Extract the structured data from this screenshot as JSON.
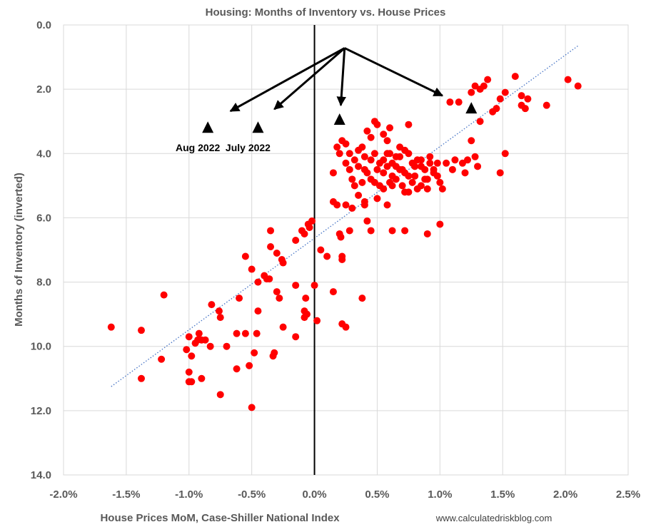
{
  "chart_data": {
    "type": "scatter",
    "title": "Housing: Months of Inventory vs. House Prices",
    "xlabel": "House Prices MoM, Case-Shiller National Index",
    "ylabel": "Months of Inventory (inverted)",
    "credit": "www.calculatedriskblog.com",
    "xlim": [
      -0.02,
      0.025
    ],
    "ylim": [
      0,
      14
    ],
    "y_inverted": true,
    "grid": true,
    "x_ticks": [
      -0.02,
      -0.015,
      -0.01,
      -0.005,
      0,
      0.005,
      0.01,
      0.015,
      0.02,
      0.025
    ],
    "x_tick_labels": [
      "-2.0%",
      "-1.5%",
      "-1.0%",
      "-0.5%",
      "0.0%",
      "0.5%",
      "1.0%",
      "1.5%",
      "2.0%",
      "2.5%"
    ],
    "y_ticks": [
      0,
      2,
      4,
      6,
      8,
      10,
      12,
      14
    ],
    "y_tick_labels": [
      "0.0",
      "2.0",
      "4.0",
      "6.0",
      "8.0",
      "10.0",
      "12.0",
      "14.0"
    ],
    "colors": {
      "points": "#ff0000",
      "trendline": "#4472c4",
      "grid": "#d9d9d9",
      "zero_line": "#000000",
      "markers": "#000000",
      "text": "#595959"
    },
    "trendline": {
      "style": "dotted",
      "x": [
        -0.0162,
        0.021
      ],
      "y": [
        11.25,
        0.65
      ]
    },
    "annotations": [
      {
        "text": "Aug 2022",
        "x": -0.0085,
        "y": 3.2
      },
      {
        "text": "July 2022",
        "x": -0.0045,
        "y": 3.2
      }
    ],
    "highlight_markers": [
      {
        "x": -0.0085,
        "y": 3.2
      },
      {
        "x": -0.0045,
        "y": 3.2
      },
      {
        "x": 0.002,
        "y": 2.95
      },
      {
        "x": 0.0125,
        "y": 2.6
      }
    ],
    "arrows": {
      "origin": {
        "x": 0.0024,
        "y": 0.72
      },
      "targets": [
        {
          "x": -0.0067,
          "y": 2.68
        },
        {
          "x": -0.0032,
          "y": 2.62
        },
        {
          "x": 0.0021,
          "y": 2.5
        },
        {
          "x": 0.0102,
          "y": 2.2
        }
      ]
    },
    "points": [
      [
        -0.0162,
        9.4
      ],
      [
        -0.0138,
        9.5
      ],
      [
        -0.0138,
        11.0
      ],
      [
        -0.012,
        8.4
      ],
      [
        -0.0122,
        10.4
      ],
      [
        -0.0102,
        10.1
      ],
      [
        -0.01,
        9.7
      ],
      [
        -0.0098,
        10.3
      ],
      [
        -0.01,
        10.8
      ],
      [
        -0.01,
        11.1
      ],
      [
        -0.0098,
        11.1
      ],
      [
        -0.0095,
        9.9
      ],
      [
        -0.0093,
        9.8
      ],
      [
        -0.0092,
        9.6
      ],
      [
        -0.009,
        9.8
      ],
      [
        -0.009,
        11.0
      ],
      [
        -0.0087,
        9.8
      ],
      [
        -0.0083,
        10.0
      ],
      [
        -0.0082,
        8.7
      ],
      [
        -0.0076,
        8.9
      ],
      [
        -0.0075,
        9.1
      ],
      [
        -0.0075,
        11.5
      ],
      [
        -0.007,
        10.0
      ],
      [
        -0.0062,
        9.6
      ],
      [
        -0.0062,
        10.7
      ],
      [
        -0.006,
        8.5
      ],
      [
        -0.0055,
        9.6
      ],
      [
        -0.0055,
        7.2
      ],
      [
        -0.0052,
        10.6
      ],
      [
        -0.005,
        11.9
      ],
      [
        -0.005,
        7.6
      ],
      [
        -0.0048,
        10.2
      ],
      [
        -0.0046,
        9.6
      ],
      [
        -0.0045,
        8.0
      ],
      [
        -0.0045,
        8.9
      ],
      [
        -0.004,
        7.8
      ],
      [
        -0.0038,
        7.9
      ],
      [
        -0.0036,
        7.9
      ],
      [
        -0.0035,
        6.4
      ],
      [
        -0.0035,
        6.9
      ],
      [
        -0.0033,
        10.3
      ],
      [
        -0.0032,
        10.2
      ],
      [
        -0.003,
        8.3
      ],
      [
        -0.003,
        7.1
      ],
      [
        -0.0028,
        8.5
      ],
      [
        -0.0026,
        7.3
      ],
      [
        -0.0025,
        7.4
      ],
      [
        -0.0025,
        9.4
      ],
      [
        -0.0015,
        8.1
      ],
      [
        -0.0015,
        9.7
      ],
      [
        -0.0015,
        6.7
      ],
      [
        -0.001,
        6.4
      ],
      [
        -0.0008,
        6.5
      ],
      [
        -0.0008,
        8.9
      ],
      [
        -0.0008,
        9.1
      ],
      [
        -0.0007,
        8.5
      ],
      [
        -0.0006,
        9.0
      ],
      [
        -0.0005,
        6.2
      ],
      [
        -0.0004,
        6.3
      ],
      [
        -0.0002,
        6.1
      ],
      [
        0.0,
        8.1
      ],
      [
        0.0002,
        9.2
      ],
      [
        0.0005,
        7.0
      ],
      [
        0.001,
        7.2
      ],
      [
        0.0015,
        8.3
      ],
      [
        0.0015,
        5.5
      ],
      [
        0.0018,
        5.6
      ],
      [
        0.002,
        6.5
      ],
      [
        0.0021,
        6.6
      ],
      [
        0.0022,
        7.2
      ],
      [
        0.0022,
        7.3
      ],
      [
        0.0022,
        9.3
      ],
      [
        0.0025,
        9.4
      ],
      [
        0.0025,
        5.6
      ],
      [
        0.0028,
        6.4
      ],
      [
        0.003,
        5.7
      ],
      [
        0.0038,
        8.5
      ],
      [
        0.004,
        5.6
      ],
      [
        0.0042,
        6.1
      ],
      [
        0.0045,
        6.4
      ],
      [
        0.0058,
        5.6
      ],
      [
        0.0062,
        6.4
      ],
      [
        0.0072,
        6.4
      ],
      [
        0.0075,
        3.1
      ],
      [
        0.009,
        6.5
      ],
      [
        0.01,
        6.2
      ],
      [
        0.0015,
        4.6
      ],
      [
        0.0018,
        3.8
      ],
      [
        0.002,
        4.0
      ],
      [
        0.0022,
        3.6
      ],
      [
        0.0025,
        3.7
      ],
      [
        0.0025,
        4.3
      ],
      [
        0.0028,
        4.5
      ],
      [
        0.003,
        4.8
      ],
      [
        0.0032,
        4.2
      ],
      [
        0.0035,
        4.4
      ],
      [
        0.0038,
        3.8
      ],
      [
        0.004,
        4.1
      ],
      [
        0.0042,
        3.3
      ],
      [
        0.0045,
        3.5
      ],
      [
        0.0045,
        4.8
      ],
      [
        0.0048,
        3.0
      ],
      [
        0.005,
        3.1
      ],
      [
        0.005,
        4.5
      ],
      [
        0.0052,
        5.0
      ],
      [
        0.0055,
        3.4
      ],
      [
        0.0055,
        4.2
      ],
      [
        0.0058,
        3.6
      ],
      [
        0.006,
        3.2
      ],
      [
        0.006,
        4.0
      ],
      [
        0.0062,
        4.7
      ],
      [
        0.0065,
        4.4
      ],
      [
        0.0068,
        3.8
      ],
      [
        0.007,
        4.5
      ],
      [
        0.0072,
        5.2
      ],
      [
        0.0075,
        4.0
      ],
      [
        0.0078,
        4.3
      ],
      [
        0.008,
        4.7
      ],
      [
        0.0082,
        4.2
      ],
      [
        0.0085,
        5.0
      ],
      [
        0.0088,
        4.5
      ],
      [
        0.009,
        4.8
      ],
      [
        0.0092,
        4.1
      ],
      [
        0.0095,
        4.6
      ],
      [
        0.0098,
        4.3
      ],
      [
        0.01,
        4.9
      ],
      [
        0.0102,
        5.1
      ],
      [
        0.0105,
        4.3
      ],
      [
        0.0032,
        5.0
      ],
      [
        0.0035,
        5.3
      ],
      [
        0.0038,
        4.9
      ],
      [
        0.004,
        5.5
      ],
      [
        0.0042,
        4.6
      ],
      [
        0.0048,
        4.0
      ],
      [
        0.005,
        5.4
      ],
      [
        0.0052,
        4.3
      ],
      [
        0.0055,
        5.1
      ],
      [
        0.0058,
        4.4
      ],
      [
        0.0062,
        5.0
      ],
      [
        0.0065,
        4.8
      ],
      [
        0.0068,
        4.1
      ],
      [
        0.007,
        5.0
      ],
      [
        0.0072,
        4.6
      ],
      [
        0.0075,
        5.2
      ],
      [
        0.0078,
        4.9
      ],
      [
        0.008,
        4.4
      ],
      [
        0.0082,
        5.1
      ],
      [
        0.0085,
        4.2
      ],
      [
        0.0088,
        4.8
      ],
      [
        0.009,
        5.1
      ],
      [
        0.0092,
        4.3
      ],
      [
        0.0095,
        4.5
      ],
      [
        0.0028,
        4.0
      ],
      [
        0.0035,
        3.9
      ],
      [
        0.0045,
        4.2
      ],
      [
        0.0055,
        4.6
      ],
      [
        0.006,
        4.9
      ],
      [
        0.0065,
        4.1
      ],
      [
        0.0068,
        4.5
      ],
      [
        0.0072,
        3.9
      ],
      [
        0.0075,
        4.7
      ],
      [
        0.0085,
        4.4
      ],
      [
        0.0098,
        4.7
      ],
      [
        0.004,
        4.5
      ],
      [
        0.0048,
        4.9
      ],
      [
        0.0058,
        4.0
      ],
      [
        0.0062,
        4.3
      ],
      [
        0.0108,
        2.4
      ],
      [
        0.011,
        4.5
      ],
      [
        0.0112,
        4.2
      ],
      [
        0.0115,
        2.4
      ],
      [
        0.0118,
        4.3
      ],
      [
        0.012,
        4.6
      ],
      [
        0.0122,
        4.2
      ],
      [
        0.0125,
        2.1
      ],
      [
        0.0125,
        3.6
      ],
      [
        0.0128,
        1.9
      ],
      [
        0.0128,
        4.1
      ],
      [
        0.013,
        4.4
      ],
      [
        0.0132,
        2.0
      ],
      [
        0.0132,
        3.0
      ],
      [
        0.0135,
        1.9
      ],
      [
        0.0138,
        1.7
      ],
      [
        0.0142,
        2.7
      ],
      [
        0.0145,
        2.6
      ],
      [
        0.0148,
        2.3
      ],
      [
        0.0148,
        4.6
      ],
      [
        0.0152,
        2.1
      ],
      [
        0.0152,
        4.0
      ],
      [
        0.016,
        1.6
      ],
      [
        0.0165,
        2.2
      ],
      [
        0.0165,
        2.5
      ],
      [
        0.0168,
        2.6
      ],
      [
        0.017,
        2.3
      ],
      [
        0.0185,
        2.5
      ],
      [
        0.0202,
        1.7
      ],
      [
        0.021,
        1.9
      ]
    ]
  }
}
